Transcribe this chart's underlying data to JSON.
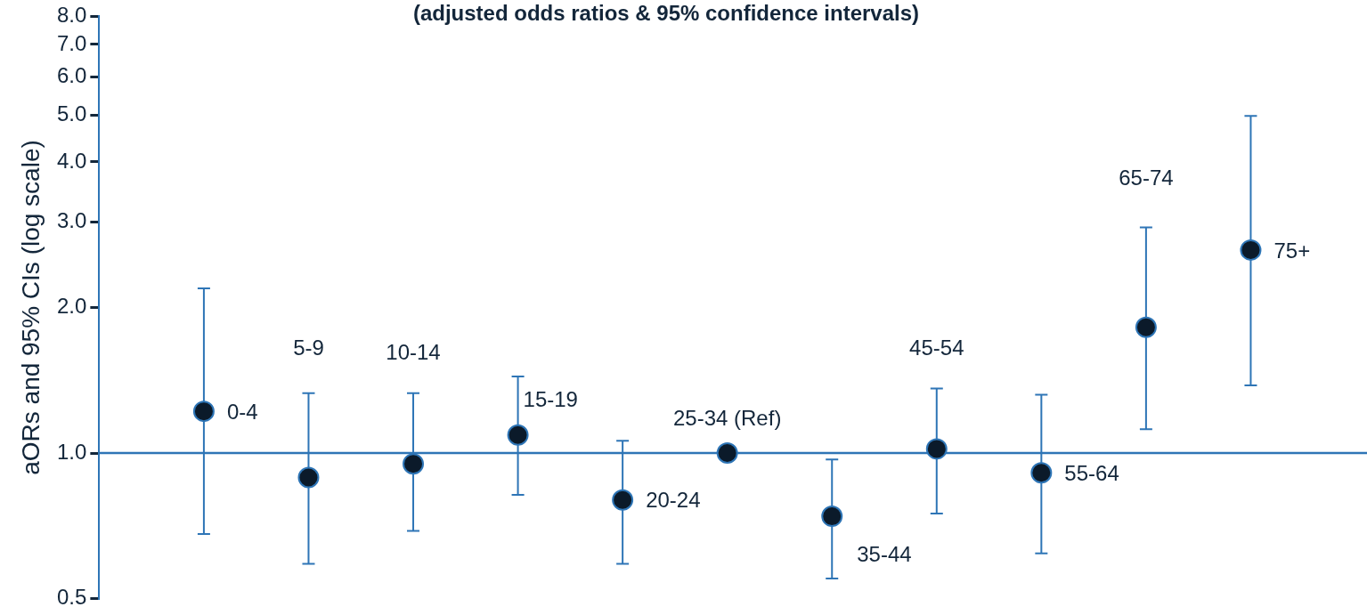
{
  "chart_data": {
    "type": "scatter",
    "title": "(adjusted odds ratios & 95% confidence intervals)",
    "ylabel": "aORs and 95% CIs (log scale)",
    "categories": [
      "0-4",
      "5-9",
      "10-14",
      "15-19",
      "20-24",
      "25-34 (Ref)",
      "35-44",
      "45-54",
      "55-64",
      "65-74",
      "75+"
    ],
    "series": [
      {
        "color": "#0b1a2a",
        "values": [
          1.22,
          0.89,
          0.95,
          1.09,
          0.8,
          1.0,
          0.74,
          1.02,
          0.91,
          1.82,
          2.63
        ],
        "errors": [
          [
            0.68,
            2.19
          ],
          [
            0.59,
            1.33
          ],
          [
            0.69,
            1.33
          ],
          [
            0.82,
            1.44
          ],
          [
            0.59,
            1.06
          ],
          null,
          [
            0.55,
            0.97
          ],
          [
            0.75,
            1.36
          ],
          [
            0.62,
            1.32
          ],
          [
            1.12,
            2.93
          ],
          [
            1.38,
            4.98
          ]
        ]
      }
    ],
    "log": "y",
    "ylim": [
      0.5,
      8
    ],
    "yticks": [
      0.5,
      {
        "value": 1,
        "label": "1.0"
      },
      {
        "value": 2,
        "label": "2.0"
      },
      {
        "value": 3,
        "label": "3.0"
      },
      {
        "value": 4,
        "label": "4.0"
      },
      {
        "value": 5,
        "label": "5.0"
      },
      {
        "value": 6,
        "label": "6.0"
      },
      {
        "value": 7,
        "label": "7.0"
      },
      {
        "value": 8,
        "label": "8.0"
      }
    ],
    "ref_lines": [
      {
        "axis": "y",
        "value": 1,
        "color": "#2e75b6"
      }
    ],
    "tick_labels": "y",
    "marker": "circle",
    "grid": false,
    "legend": false
  }
}
